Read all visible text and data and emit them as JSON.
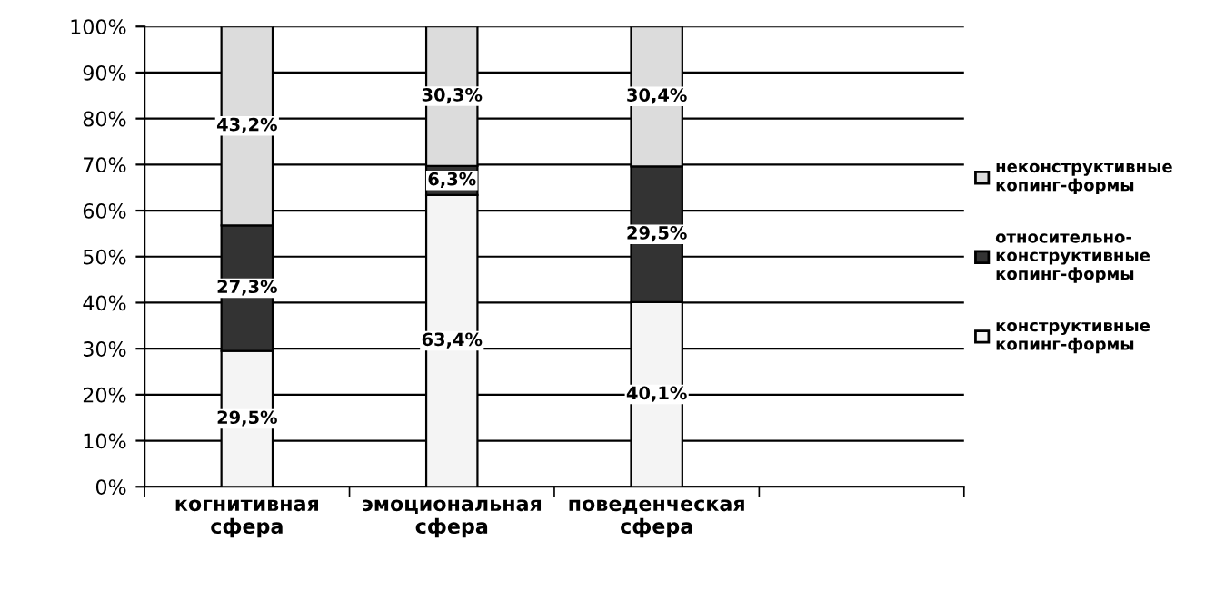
{
  "chart_data": {
    "type": "bar",
    "stacked": true,
    "categories": [
      "когнитивная\nсфера",
      "эмоциональная\nсфера",
      "поведенческая\nсфера",
      null
    ],
    "series": [
      {
        "name": "конструктивные\nкопинг-формы",
        "color": "#f4f4f4",
        "values": [
          29.5,
          63.4,
          40.1,
          null
        ],
        "value_labels": [
          "29,5%",
          "63,4%",
          "40,1%",
          null
        ]
      },
      {
        "name": "относительно-\nконструктивные\nкопинг-формы",
        "color": "#333333",
        "values": [
          27.3,
          6.3,
          29.5,
          null
        ],
        "value_labels": [
          "27,3%",
          "6,3%",
          "29,5%",
          null
        ]
      },
      {
        "name": "неконструктивные\nкопинг-формы",
        "color": "#dcdcdc",
        "values": [
          43.2,
          30.3,
          30.4,
          null
        ],
        "value_labels": [
          "43,2%",
          "30,3%",
          "30,4%",
          null
        ]
      }
    ],
    "ylim": [
      0,
      100
    ],
    "yticks": [
      {
        "value": 0,
        "label": "0%"
      },
      {
        "value": 10,
        "label": "10%"
      },
      {
        "value": 20,
        "label": "20%"
      },
      {
        "value": 30,
        "label": "30%"
      },
      {
        "value": 40,
        "label": "40%"
      },
      {
        "value": 50,
        "label": "50%"
      },
      {
        "value": 60,
        "label": "60%"
      },
      {
        "value": 70,
        "label": "70%"
      },
      {
        "value": 80,
        "label": "80%"
      },
      {
        "value": 90,
        "label": "90%"
      },
      {
        "value": 100,
        "label": "100%"
      }
    ],
    "grid": "y",
    "legend": "right"
  }
}
